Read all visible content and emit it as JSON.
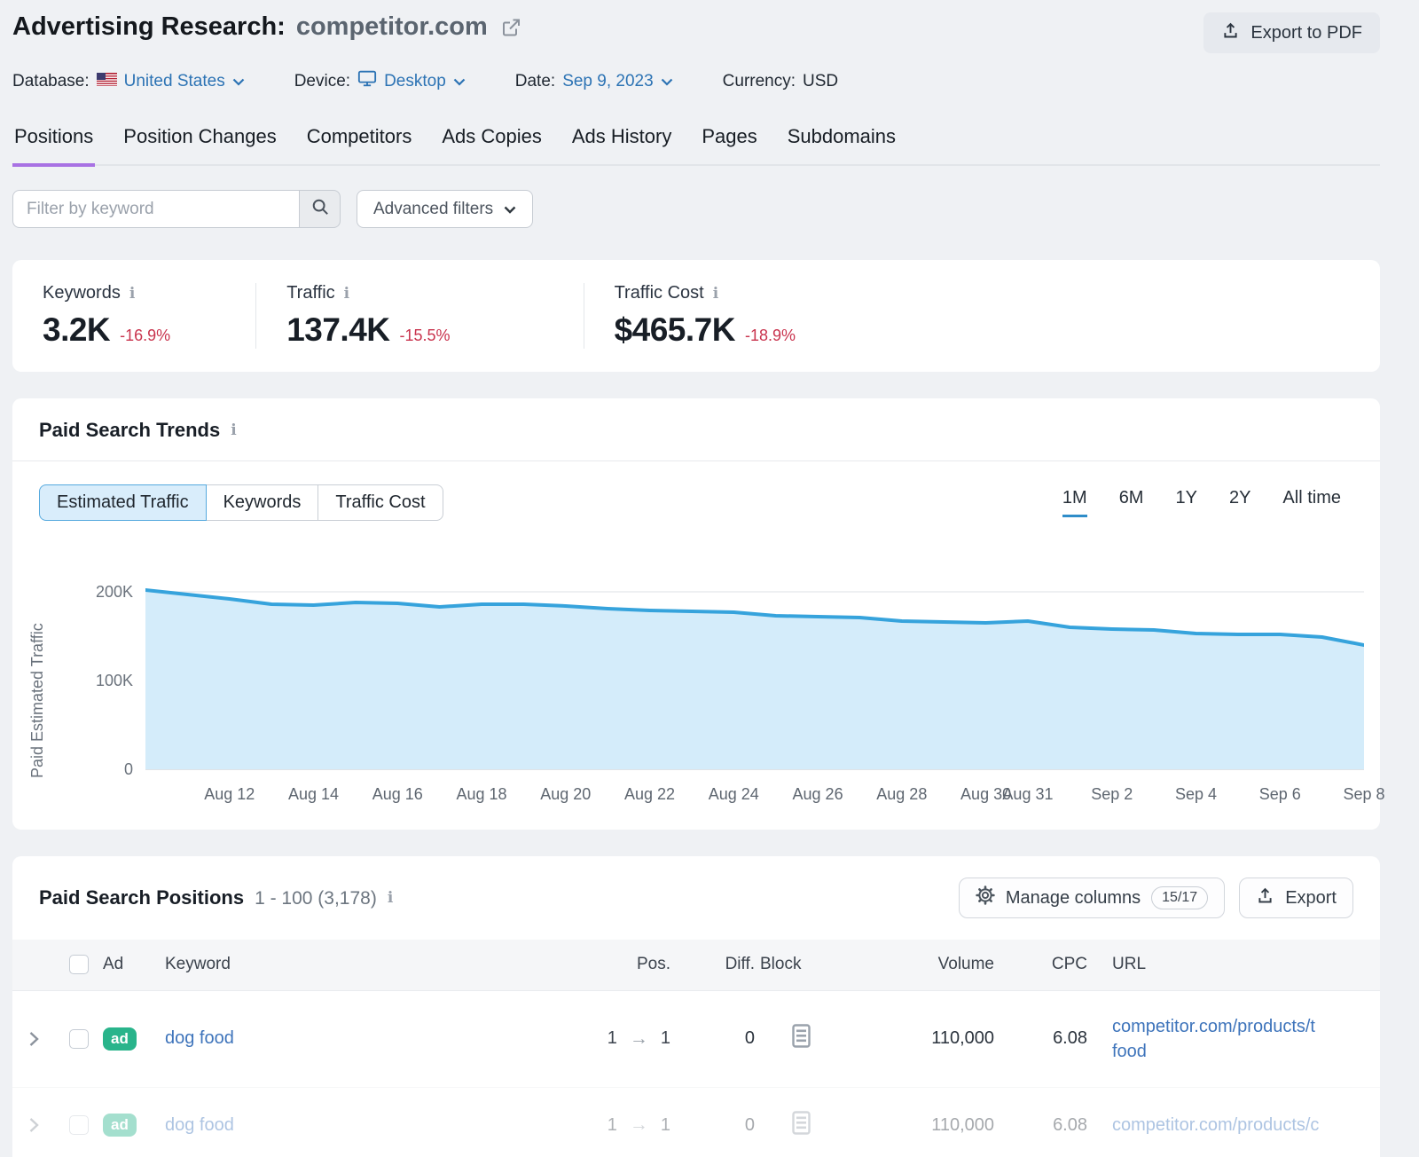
{
  "colors": {
    "link_blue": "#3e74bb",
    "accent_purple": "#a871e3",
    "negative_red": "#c9344e",
    "badge_green": "#29b48b",
    "chart_line": "#36a3dc",
    "chart_fill": "#d4ecfa"
  },
  "header": {
    "title_prefix": "Advertising Research:",
    "domain": "competitor.com",
    "export_pdf": "Export to PDF"
  },
  "toolbar": {
    "database_label": "Database:",
    "database_value": "United States",
    "device_label": "Device:",
    "device_value": "Desktop",
    "date_label": "Date:",
    "date_value": "Sep 9, 2023",
    "currency_label": "Currency:",
    "currency_value": "USD"
  },
  "tabs": [
    {
      "label": "Positions",
      "active": true
    },
    {
      "label": "Position Changes"
    },
    {
      "label": "Competitors"
    },
    {
      "label": "Ads Copies"
    },
    {
      "label": "Ads History"
    },
    {
      "label": "Pages"
    },
    {
      "label": "Subdomains"
    }
  ],
  "filter_bar": {
    "keyword_placeholder": "Filter by keyword",
    "advanced_filters": "Advanced filters"
  },
  "summary": {
    "cards": [
      {
        "label": "Keywords",
        "value": "3.2K",
        "change": "-16.9%"
      },
      {
        "label": "Traffic",
        "value": "137.4K",
        "change": "-15.5%"
      },
      {
        "label": "Traffic Cost",
        "value": "$465.7K",
        "change": "-18.9%"
      }
    ]
  },
  "trends": {
    "title": "Paid Search Trends",
    "metrics": [
      "Estimated Traffic",
      "Keywords",
      "Traffic Cost"
    ],
    "active_metric": "Estimated Traffic",
    "ranges": [
      "1M",
      "6M",
      "1Y",
      "2Y",
      "All time"
    ],
    "active_range": "1M"
  },
  "chart_data": {
    "type": "area",
    "title": "Paid Search Trends - Estimated Traffic",
    "ylabel": "Paid Estimated Traffic",
    "ylim": [
      0,
      200000
    ],
    "grid": true,
    "legend": false,
    "line_color": "#36a3dc",
    "fill_color": "#d4ecfa",
    "x": [
      "Aug 10",
      "Aug 11",
      "Aug 12",
      "Aug 13",
      "Aug 14",
      "Aug 15",
      "Aug 16",
      "Aug 17",
      "Aug 18",
      "Aug 19",
      "Aug 20",
      "Aug 21",
      "Aug 22",
      "Aug 23",
      "Aug 24",
      "Aug 25",
      "Aug 26",
      "Aug 27",
      "Aug 28",
      "Aug 29",
      "Aug 30",
      "Aug 31",
      "Sep 1",
      "Sep 2",
      "Sep 3",
      "Sep 4",
      "Sep 5",
      "Sep 6",
      "Sep 7",
      "Sep 8"
    ],
    "values": [
      202000,
      197000,
      192000,
      186000,
      185000,
      188000,
      187000,
      183000,
      186000,
      186000,
      184000,
      181000,
      179000,
      178000,
      177000,
      173000,
      172000,
      171000,
      167000,
      166000,
      165000,
      167000,
      160000,
      158000,
      157000,
      153000,
      152000,
      152000,
      149000,
      140000
    ],
    "y_ticks": [
      {
        "label": "200K",
        "value": 200000
      },
      {
        "label": "100K",
        "value": 100000
      },
      {
        "label": "0",
        "value": 0
      }
    ],
    "x_ticks": [
      {
        "label": "Aug 12",
        "index": 2
      },
      {
        "label": "Aug 14",
        "index": 4
      },
      {
        "label": "Aug 16",
        "index": 6
      },
      {
        "label": "Aug 18",
        "index": 8
      },
      {
        "label": "Aug 20",
        "index": 10
      },
      {
        "label": "Aug 22",
        "index": 12
      },
      {
        "label": "Aug 24",
        "index": 14
      },
      {
        "label": "Aug 26",
        "index": 16
      },
      {
        "label": "Aug 28",
        "index": 18
      },
      {
        "label": "Aug 30",
        "index": 20
      },
      {
        "label": "Aug 31",
        "index": 21
      },
      {
        "label": "Sep 2",
        "index": 23
      },
      {
        "label": "Sep 4",
        "index": 25
      },
      {
        "label": "Sep 6",
        "index": 27
      },
      {
        "label": "Sep 8",
        "index": 29
      }
    ]
  },
  "positions": {
    "title": "Paid Search Positions",
    "range": "1 - 100 (3,178)",
    "manage_columns": "Manage columns",
    "columns_badge": "15/17",
    "export": "Export",
    "columns": {
      "ad": "Ad",
      "keyword": "Keyword",
      "pos": "Pos.",
      "diff": "Diff.",
      "block": "Block",
      "volume": "Volume",
      "cpc": "CPC",
      "url": "URL"
    },
    "rows": [
      {
        "badge": "ad",
        "keyword": "dog food",
        "pos_from": "1",
        "pos_to": "1",
        "diff": "0",
        "volume": "110,000",
        "cpc": "6.08",
        "url_line1": "competitor.com/products/t",
        "url_line2": "food"
      },
      {
        "badge": "ad",
        "keyword": "dog food",
        "pos_from": "1",
        "pos_to": "1",
        "diff": "0",
        "volume": "110,000",
        "cpc": "6.08",
        "url_line1": "competitor.com/products/c",
        "url_line2": ""
      }
    ]
  }
}
